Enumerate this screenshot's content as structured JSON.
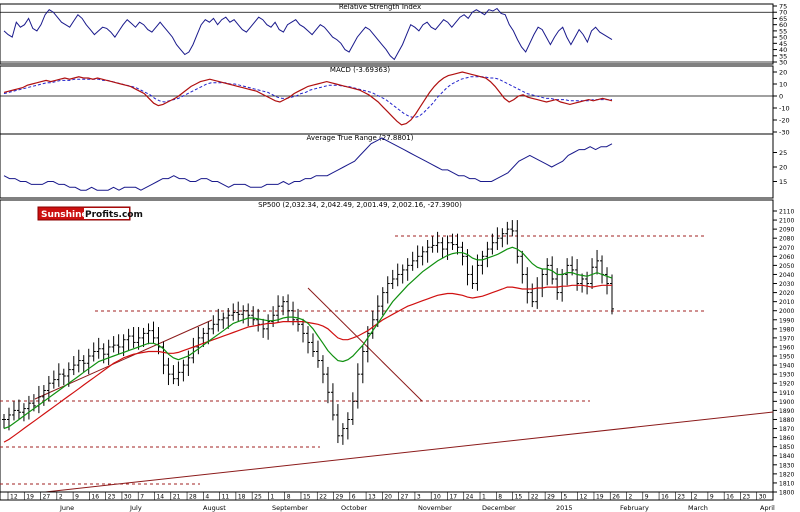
{
  "chart_data": [
    {
      "type": "line",
      "title": "Relative Strength Index",
      "ylim": [
        30,
        75
      ],
      "yticks": [
        30,
        35,
        40,
        45,
        50,
        55,
        60,
        65,
        70,
        75
      ],
      "ref_lines": [
        30,
        70
      ],
      "color": "#1a1a8c",
      "values": [
        55,
        52,
        50,
        62,
        58,
        60,
        65,
        57,
        55,
        60,
        68,
        72,
        70,
        66,
        62,
        60,
        58,
        63,
        68,
        65,
        60,
        56,
        52,
        55,
        58,
        57,
        54,
        50,
        55,
        60,
        64,
        61,
        58,
        62,
        60,
        56,
        54,
        58,
        62,
        58,
        54,
        50,
        44,
        40,
        36,
        38,
        44,
        52,
        60,
        64,
        62,
        65,
        60,
        64,
        66,
        62,
        64,
        60,
        56,
        54,
        58,
        62,
        66,
        64,
        60,
        58,
        62,
        56,
        54,
        60,
        62,
        64,
        60,
        58,
        55,
        52,
        56,
        60,
        58,
        54,
        50,
        48,
        45,
        40,
        38,
        44,
        50,
        54,
        58,
        56,
        52,
        48,
        44,
        40,
        35,
        32,
        38,
        44,
        52,
        60,
        58,
        55,
        60,
        62,
        58,
        56,
        60,
        64,
        62,
        58,
        62,
        66,
        68,
        65,
        70,
        72,
        70,
        68,
        72,
        71,
        73,
        69,
        68,
        60,
        55,
        48,
        42,
        38,
        45,
        52,
        58,
        56,
        50,
        44,
        50,
        55,
        58,
        50,
        44,
        50,
        56,
        52,
        46,
        55,
        58,
        54,
        52,
        50,
        48
      ]
    },
    {
      "type": "line",
      "title": "MACD (-3.69363)",
      "ylim": [
        -30,
        20
      ],
      "yticks": [
        -30,
        -20,
        -10,
        0,
        10,
        20
      ],
      "series": [
        {
          "color": "#b01010",
          "values": [
            3,
            4,
            5,
            6,
            7,
            9,
            10,
            11,
            12,
            13,
            12,
            13,
            14,
            15,
            14,
            15,
            16,
            15,
            15,
            14,
            15,
            14,
            13,
            12,
            11,
            10,
            9,
            8,
            6,
            4,
            2,
            -2,
            -6,
            -8,
            -7,
            -5,
            -3,
            -1,
            2,
            5,
            8,
            10,
            12,
            13,
            14,
            13,
            12,
            11,
            10,
            9,
            8,
            7,
            6,
            5,
            4,
            2,
            0,
            -2,
            -4,
            -5,
            -3,
            -1,
            2,
            4,
            6,
            8,
            9,
            10,
            11,
            12,
            11,
            10,
            9,
            8,
            7,
            6,
            5,
            3,
            1,
            -2,
            -5,
            -9,
            -13,
            -17,
            -21,
            -24,
            -23,
            -20,
            -15,
            -9,
            -3,
            3,
            8,
            12,
            15,
            17,
            18,
            19,
            20,
            19,
            18,
            17,
            16,
            15,
            12,
            8,
            3,
            -2,
            -5,
            -3,
            0,
            1,
            -1,
            -2,
            -3,
            -4,
            -5,
            -4,
            -3,
            -5,
            -6,
            -7,
            -6,
            -5,
            -4,
            -3,
            -4,
            -3,
            -2,
            -3,
            -4
          ]
        },
        {
          "color": "#2222cc",
          "dashed": true,
          "values": [
            2,
            3,
            4,
            5,
            6,
            7,
            8,
            9,
            10,
            11,
            11,
            12,
            13,
            13,
            13,
            14,
            14,
            14,
            14,
            14,
            14,
            13,
            13,
            12,
            11,
            10,
            9,
            8,
            7,
            5,
            3,
            1,
            -2,
            -4,
            -5,
            -4,
            -3,
            -2,
            0,
            2,
            4,
            6,
            8,
            10,
            11,
            11,
            11,
            11,
            10,
            10,
            9,
            8,
            7,
            6,
            5,
            4,
            3,
            1,
            -1,
            -2,
            -2,
            -1,
            0,
            2,
            3,
            5,
            6,
            7,
            8,
            9,
            9,
            9,
            8,
            8,
            7,
            6,
            5,
            4,
            3,
            1,
            -1,
            -3,
            -6,
            -9,
            -12,
            -15,
            -17,
            -18,
            -17,
            -14,
            -10,
            -6,
            -1,
            3,
            7,
            10,
            12,
            14,
            15,
            16,
            16,
            16,
            16,
            15,
            15,
            14,
            12,
            10,
            8,
            6,
            4,
            2,
            1,
            0,
            -1,
            -2,
            -2,
            -3,
            -3,
            -3,
            -4,
            -4,
            -4,
            -4,
            -4,
            -3,
            -3,
            -3,
            -3,
            -3
          ]
        }
      ]
    },
    {
      "type": "line",
      "title": "Average True Range (27.8801)",
      "ylim": [
        10,
        30
      ],
      "yticks": [
        15,
        20,
        25
      ],
      "color": "#1a1a8c",
      "values": [
        17,
        16,
        16,
        15,
        15,
        14,
        14,
        14,
        15,
        15,
        14,
        14,
        13,
        13,
        12,
        12,
        13,
        12,
        12,
        12,
        13,
        12,
        13,
        13,
        13,
        12,
        13,
        14,
        15,
        16,
        16,
        17,
        16,
        16,
        15,
        15,
        16,
        16,
        15,
        15,
        14,
        13,
        14,
        14,
        14,
        13,
        13,
        13,
        14,
        14,
        14,
        15,
        14,
        15,
        15,
        16,
        16,
        17,
        17,
        17,
        18,
        19,
        20,
        21,
        22,
        24,
        26,
        28,
        29,
        30,
        29,
        28,
        27,
        26,
        25,
        24,
        23,
        22,
        21,
        20,
        19,
        19,
        18,
        17,
        17,
        16,
        16,
        15,
        15,
        15,
        16,
        17,
        18,
        20,
        22,
        23,
        24,
        23,
        22,
        21,
        20,
        21,
        22,
        24,
        25,
        26,
        26,
        27,
        26,
        27,
        27,
        28
      ]
    },
    {
      "type": "candlestick",
      "title": "SP500 (2,032.34, 2,042.49, 2,001.49, 2,002.16, -27.3900)",
      "ylim": [
        1800,
        2110
      ],
      "yticks": [
        1800,
        1810,
        1820,
        1830,
        1840,
        1850,
        1860,
        1870,
        1880,
        1890,
        1900,
        1910,
        1920,
        1930,
        1940,
        1950,
        1960,
        1970,
        1980,
        1990,
        2000,
        2010,
        2020,
        2030,
        2040,
        2050,
        2060,
        2070,
        2080,
        2090,
        2100,
        2110
      ],
      "closes": [
        1880,
        1885,
        1890,
        1888,
        1892,
        1898,
        1895,
        1905,
        1912,
        1920,
        1924,
        1930,
        1928,
        1935,
        1940,
        1945,
        1942,
        1950,
        1955,
        1958,
        1952,
        1960,
        1962,
        1960,
        1968,
        1972,
        1965,
        1970,
        1975,
        1978,
        1970,
        1960,
        1940,
        1930,
        1925,
        1932,
        1940,
        1948,
        1960,
        1970,
        1975,
        1980,
        1985,
        1990,
        1992,
        1995,
        1998,
        1996,
        2000,
        1995,
        1990,
        1985,
        1980,
        1988,
        1995,
        2005,
        2010,
        2000,
        1990,
        1985,
        1975,
        1965,
        1955,
        1945,
        1930,
        1910,
        1885,
        1862,
        1870,
        1880,
        1900,
        1930,
        1955,
        1975,
        1990,
        2005,
        2020,
        2030,
        2035,
        2040,
        2045,
        2050,
        2055,
        2060,
        2065,
        2070,
        2072,
        2075,
        2068,
        2075,
        2073,
        2070,
        2060,
        2040,
        2030,
        2050,
        2060,
        2068,
        2075,
        2080,
        2085,
        2090,
        2088,
        2060,
        2040,
        2020,
        2010,
        2025,
        2040,
        2050,
        2035,
        2020,
        2040,
        2050,
        2045,
        2030,
        2035,
        2030,
        2048,
        2055,
        2040,
        2030,
        2002
      ],
      "ma50": [
        1855,
        1858,
        1862,
        1866,
        1870,
        1874,
        1878,
        1882,
        1886,
        1890,
        1894,
        1898,
        1902,
        1906,
        1910,
        1914,
        1918,
        1922,
        1926,
        1930,
        1934,
        1938,
        1942,
        1945,
        1948,
        1950,
        1952,
        1953,
        1954,
        1955,
        1955,
        1955,
        1954,
        1953,
        1953,
        1954,
        1956,
        1958,
        1960,
        1962,
        1964,
        1966,
        1968,
        1970,
        1972,
        1974,
        1976,
        1978,
        1980,
        1982,
        1983,
        1984,
        1985,
        1986,
        1986,
        1987,
        1988,
        1988,
        1988,
        1988,
        1988,
        1987,
        1986,
        1985,
        1983,
        1980,
        1975,
        1970,
        1968,
        1968,
        1970,
        1972,
        1975,
        1978,
        1982,
        1986,
        1990,
        1993,
        1996,
        1999,
        2002,
        2005,
        2007,
        2009,
        2011,
        2013,
        2015,
        2017,
        2018,
        2019,
        2019,
        2018,
        2017,
        2015,
        2014,
        2015,
        2016,
        2018,
        2020,
        2022,
        2024,
        2026,
        2026,
        2025,
        2024,
        2024,
        2024,
        2025,
        2025,
        2026,
        2026,
        2026,
        2027,
        2027,
        2028,
        2028,
        2028,
        2027,
        2026,
        2027,
        2028,
        2028,
        2028
      ],
      "ma20": [
        1870,
        1872,
        1876,
        1880,
        1884,
        1888,
        1892,
        1896,
        1900,
        1904,
        1908,
        1912,
        1916,
        1920,
        1924,
        1928,
        1932,
        1936,
        1940,
        1944,
        1946,
        1948,
        1950,
        1952,
        1954,
        1956,
        1958,
        1960,
        1962,
        1964,
        1964,
        1962,
        1958,
        1952,
        1948,
        1946,
        1948,
        1950,
        1954,
        1958,
        1962,
        1966,
        1970,
        1974,
        1978,
        1982,
        1986,
        1988,
        1990,
        1992,
        1992,
        1991,
        1990,
        1989,
        1989,
        1990,
        1992,
        1993,
        1993,
        1992,
        1990,
        1986,
        1980,
        1972,
        1964,
        1956,
        1950,
        1945,
        1944,
        1946,
        1950,
        1956,
        1962,
        1970,
        1978,
        1986,
        1994,
        2002,
        2010,
        2016,
        2022,
        2028,
        2033,
        2038,
        2043,
        2047,
        2051,
        2055,
        2058,
        2061,
        2063,
        2064,
        2064,
        2062,
        2058,
        2056,
        2056,
        2058,
        2060,
        2062,
        2065,
        2068,
        2070,
        2068,
        2064,
        2058,
        2052,
        2048,
        2046,
        2046,
        2044,
        2040,
        2040,
        2042,
        2042,
        2040,
        2039,
        2038,
        2040,
        2042,
        2040,
        2038,
        2036
      ]
    }
  ],
  "x_axis": {
    "days": [
      "12",
      "19",
      "27",
      "2",
      "9",
      "16",
      "23",
      "30",
      "7",
      "14",
      "21",
      "28",
      "4",
      "11",
      "18",
      "25",
      "1",
      "8",
      "15",
      "22",
      "29",
      "6",
      "13",
      "20",
      "27",
      "3",
      "10",
      "17",
      "24",
      "1",
      "8",
      "15",
      "22",
      "29",
      "5",
      "12",
      "19",
      "26",
      "2",
      "9",
      "16",
      "23",
      "2",
      "9",
      "16",
      "23",
      "30"
    ],
    "months": [
      "June",
      "July",
      "August",
      "September",
      "October",
      "November",
      "December",
      "2015",
      "February",
      "March",
      "April"
    ]
  },
  "logo": {
    "sunshine": "Sunshine",
    "profits": "Profits.com"
  }
}
